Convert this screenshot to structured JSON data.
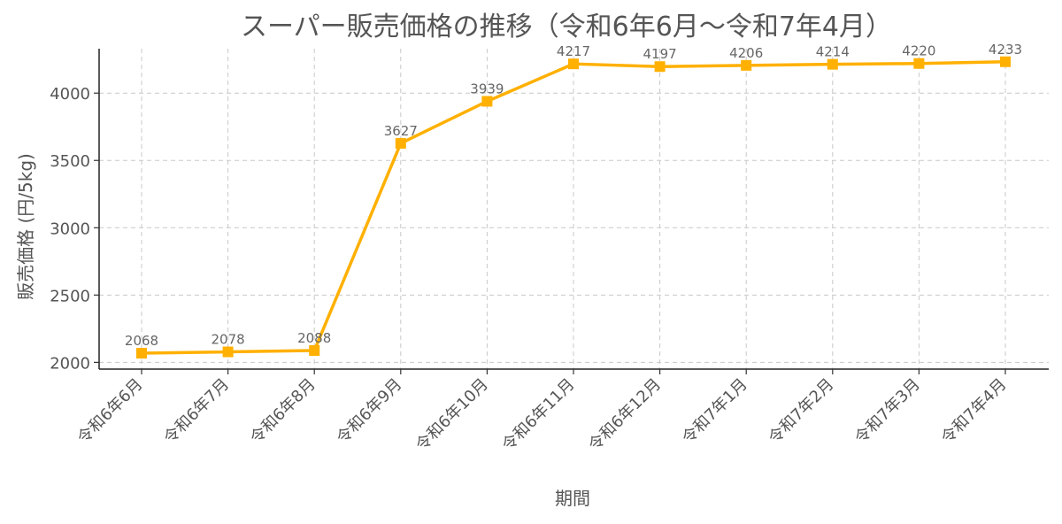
{
  "chart_data": {
    "type": "line",
    "title": "スーパー販売価格の推移（令和6年6月～令和7年4月）",
    "xlabel": "期間",
    "ylabel": "販売価格 (円/5kg)",
    "categories": [
      "令和6年6月",
      "令和6年7月",
      "令和6年8月",
      "令和6年9月",
      "令和6年10月",
      "令和6年11月",
      "令和6年12月",
      "令和7年1月",
      "令和7年2月",
      "令和7年3月",
      "令和7年4月"
    ],
    "series": [
      {
        "values": [
          2068,
          2078,
          2088,
          3627,
          3939,
          4217,
          4197,
          4206,
          4214,
          4220,
          4233
        ],
        "color": "#FFB000",
        "marker": "square"
      }
    ],
    "ylim": [
      1950,
      4330
    ],
    "yticks": [
      2000,
      2500,
      3000,
      3500,
      4000
    ],
    "grid": true,
    "data_labels": true
  }
}
